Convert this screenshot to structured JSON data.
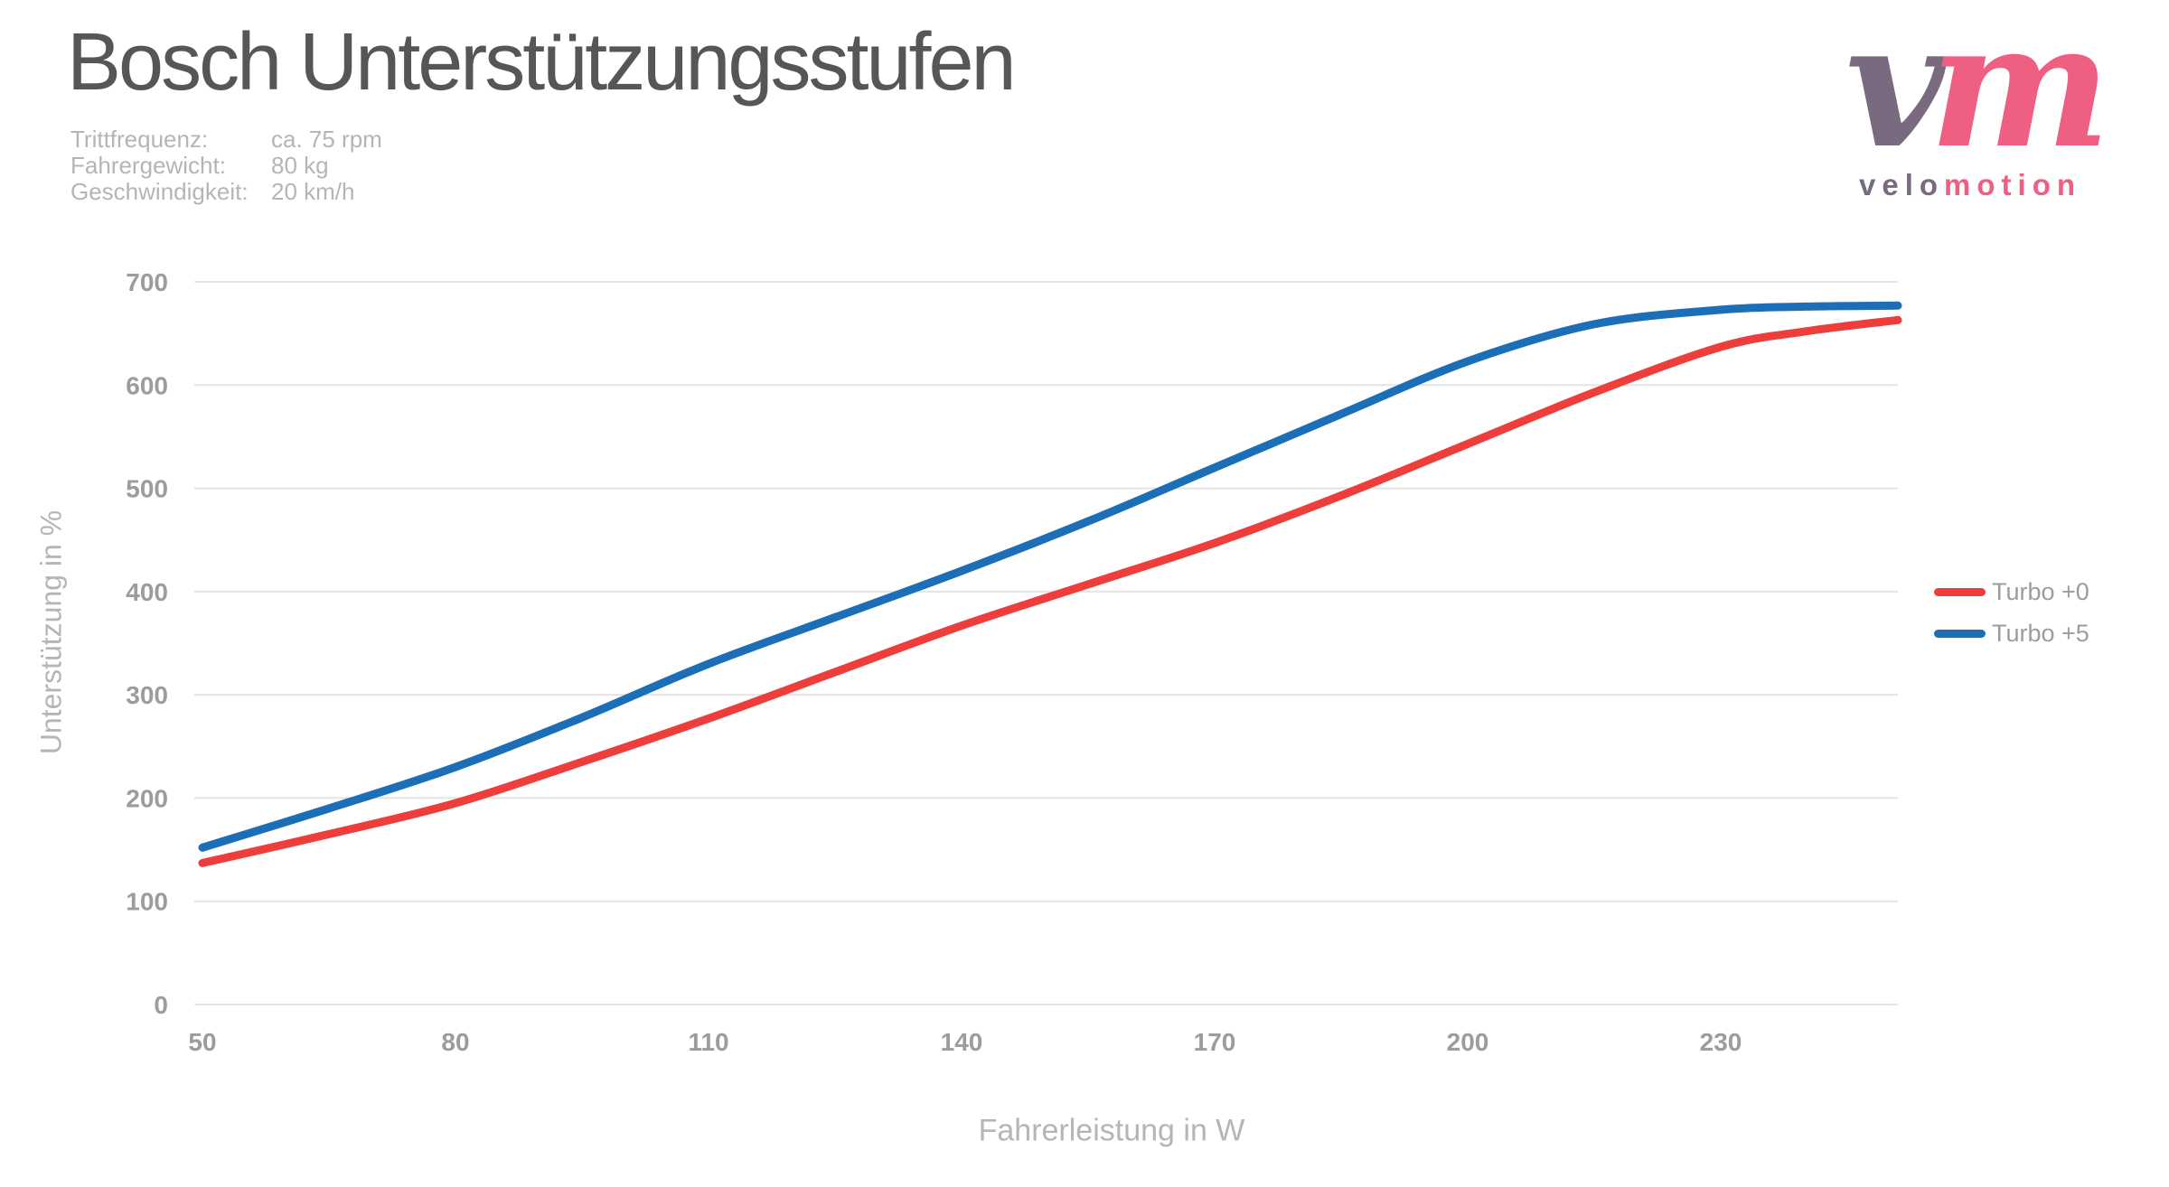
{
  "title": "Bosch Unterstützungsstufen",
  "meta": {
    "rows": [
      {
        "label": "Trittfrequenz:",
        "value": "ca. 75 rpm"
      },
      {
        "label": "Fahrergewicht:",
        "value": "80 kg"
      },
      {
        "label": "Geschwindigkeit:",
        "value": "20 km/h"
      }
    ]
  },
  "logo": {
    "mark_left": "v",
    "mark_right": "m",
    "word_left": "velo",
    "word_right": "motion",
    "color_left": "#796a80",
    "color_right": "#ef5f82"
  },
  "chart_data": {
    "type": "line",
    "title": "Bosch Unterstützungsstufen",
    "xlabel": "Fahrerleistung in W",
    "ylabel": "Unterstützung in %",
    "x": [
      50,
      65,
      80,
      95,
      110,
      125,
      140,
      155,
      170,
      185,
      200,
      215,
      230,
      240,
      251
    ],
    "series": [
      {
        "name": "Turbo +0",
        "color": "#ee3e3b",
        "values": [
          137,
          165,
          195,
          235,
          277,
          322,
          367,
          407,
          447,
          493,
          543,
          593,
          637,
          652,
          663
        ]
      },
      {
        "name": "Turbo +5",
        "color": "#1c6fb7",
        "values": [
          152,
          190,
          230,
          278,
          330,
          375,
          420,
          468,
          520,
          572,
          623,
          659,
          673,
          676,
          677
        ]
      }
    ],
    "xticks": [
      50,
      80,
      110,
      140,
      170,
      200,
      230
    ],
    "yticks": [
      0,
      100,
      200,
      300,
      400,
      500,
      600,
      700
    ],
    "xlim": [
      50,
      251
    ],
    "ylim": [
      0,
      700
    ],
    "grid": "horizontal",
    "gridline_color": "#e4e4e4",
    "tick_label_color": "#9c9c9c",
    "legend_position": "right"
  },
  "legend": {
    "items": [
      {
        "label": "Turbo +0",
        "color": "#ee3e3b"
      },
      {
        "label": "Turbo +5",
        "color": "#1c6fb7"
      }
    ]
  }
}
